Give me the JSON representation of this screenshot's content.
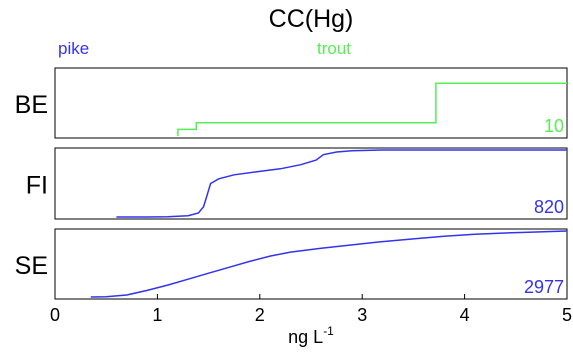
{
  "chart_data": {
    "type": "line",
    "title": "CC(Hg)",
    "xlabel": "ng L",
    "xlabel_superscript": "-1",
    "xlim": [
      0,
      5
    ],
    "x_ticks": [
      "0",
      "1",
      "2",
      "3",
      "4",
      "5"
    ],
    "legend": [
      {
        "name": "pike",
        "color": "#3333ee",
        "position": "top-left"
      },
      {
        "name": "trout",
        "color": "#55ee55",
        "position": "top-center"
      }
    ],
    "panels": [
      {
        "label": "BE",
        "count": "10",
        "series_color": "#55ee55",
        "points": [
          [
            1.2,
            0.0
          ],
          [
            1.2,
            0.1
          ],
          [
            1.38,
            0.1
          ],
          [
            1.38,
            0.2
          ],
          [
            3.72,
            0.2
          ],
          [
            3.72,
            0.8
          ],
          [
            5.0,
            0.8
          ]
        ]
      },
      {
        "label": "FI",
        "count": "820",
        "series_color": "#3333ee",
        "points": [
          [
            0.6,
            0.0
          ],
          [
            0.9,
            0.0
          ],
          [
            1.1,
            0.005
          ],
          [
            1.3,
            0.02
          ],
          [
            1.4,
            0.06
          ],
          [
            1.45,
            0.15
          ],
          [
            1.48,
            0.3
          ],
          [
            1.52,
            0.5
          ],
          [
            1.6,
            0.57
          ],
          [
            1.75,
            0.63
          ],
          [
            2.0,
            0.68
          ],
          [
            2.2,
            0.72
          ],
          [
            2.4,
            0.78
          ],
          [
            2.55,
            0.85
          ],
          [
            2.62,
            0.93
          ],
          [
            2.75,
            0.97
          ],
          [
            2.9,
            0.99
          ],
          [
            3.2,
            1.0
          ],
          [
            5.0,
            1.0
          ]
        ]
      },
      {
        "label": "SE",
        "count": "2977",
        "series_color": "#3333ee",
        "points": [
          [
            0.35,
            0.0
          ],
          [
            0.5,
            0.005
          ],
          [
            0.7,
            0.03
          ],
          [
            0.9,
            0.1
          ],
          [
            1.1,
            0.18
          ],
          [
            1.3,
            0.27
          ],
          [
            1.5,
            0.36
          ],
          [
            1.7,
            0.45
          ],
          [
            1.9,
            0.54
          ],
          [
            2.1,
            0.62
          ],
          [
            2.3,
            0.68
          ],
          [
            2.6,
            0.74
          ],
          [
            2.9,
            0.79
          ],
          [
            3.2,
            0.84
          ],
          [
            3.5,
            0.88
          ],
          [
            3.8,
            0.92
          ],
          [
            4.1,
            0.95
          ],
          [
            4.4,
            0.97
          ],
          [
            4.7,
            0.985
          ],
          [
            5.0,
            1.0
          ]
        ]
      }
    ]
  }
}
